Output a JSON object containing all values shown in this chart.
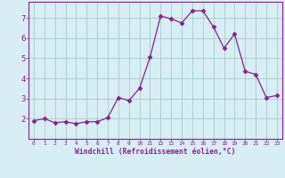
{
  "x": [
    0,
    1,
    2,
    3,
    4,
    5,
    6,
    7,
    8,
    9,
    10,
    11,
    12,
    13,
    14,
    15,
    16,
    17,
    18,
    19,
    20,
    21,
    22,
    23
  ],
  "y": [
    1.9,
    2.0,
    1.8,
    1.85,
    1.75,
    1.85,
    1.85,
    2.05,
    3.05,
    2.9,
    3.5,
    5.05,
    7.1,
    6.95,
    6.75,
    7.35,
    7.35,
    6.55,
    5.5,
    6.2,
    4.35,
    4.2,
    3.05,
    3.15
  ],
  "line_color": "#882288",
  "marker": "D",
  "marker_size": 2.5,
  "bg_color": "#d7eef4",
  "grid_color": "#aacccc",
  "xlabel": "Windchill (Refroidissement éolien,°C)",
  "xlabel_color": "#882288",
  "tick_color": "#882288",
  "xlim": [
    -0.5,
    23.5
  ],
  "ylim": [
    1.0,
    7.8
  ],
  "xticks": [
    0,
    1,
    2,
    3,
    4,
    5,
    6,
    7,
    8,
    9,
    10,
    11,
    12,
    13,
    14,
    15,
    16,
    17,
    18,
    19,
    20,
    21,
    22,
    23
  ],
  "yticks": [
    2,
    3,
    4,
    5,
    6,
    7
  ]
}
